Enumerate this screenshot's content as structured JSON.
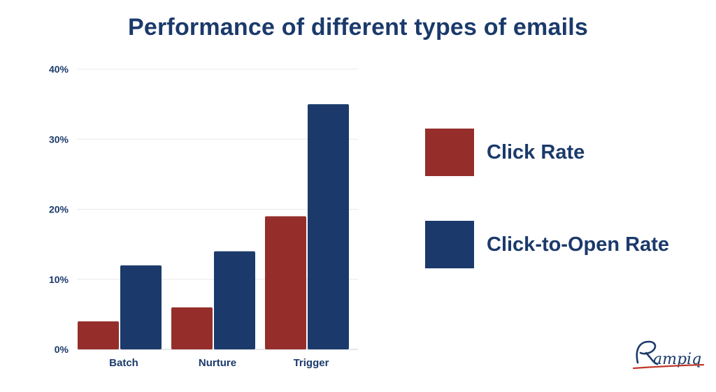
{
  "title": "Performance of different types of emails",
  "chart_data": {
    "type": "bar",
    "title": "Performance of different types of emails",
    "categories": [
      "Batch",
      "Nurture",
      "Trigger"
    ],
    "series": [
      {
        "name": "Click Rate",
        "color": "#952e2b",
        "values": [
          4,
          6,
          19
        ]
      },
      {
        "name": "Click-to-Open Rate",
        "color": "#1b3a6b",
        "values": [
          12,
          14,
          35
        ]
      }
    ],
    "ylim": [
      0,
      40
    ],
    "yticks": [
      0,
      10,
      20,
      30,
      40
    ],
    "ytick_labels": [
      "0%",
      "10%",
      "20%",
      "30%",
      "40%"
    ],
    "grid": true,
    "legend_position": "right",
    "xlabel": "",
    "ylabel": ""
  },
  "brand": {
    "name": "Rampiq",
    "accent_color": "#c0392b",
    "text_color": "#1b3a6b"
  }
}
